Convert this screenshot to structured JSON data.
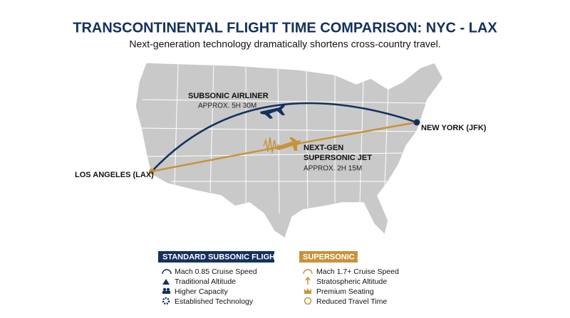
{
  "header": {
    "title": "TRANSCONTINENTAL FLIGHT TIME COMPARISON: NYC - LAX",
    "subtitle": "Next-generation technology dramatically shortens cross-country travel."
  },
  "routes": [
    {
      "name_lines": [
        "SUBSONIC AIRLINER"
      ],
      "time": "APPROX. 5H 30M"
    },
    {
      "name_lines": [
        "NEXT-GEN",
        "SUPERSONIC JET"
      ],
      "time": "APPROX. 2H 15M"
    }
  ],
  "cities": {
    "origin": "LOS ANGELES (LAX)",
    "destination": "NEW YORK (JFK)"
  },
  "legend": [
    {
      "title": "STANDARD SUBSONIC FLIGHT",
      "items": [
        "Mach 0.85 Cruise Speed",
        "Traditional Altitude",
        "Higher Capacity",
        "Established Technology"
      ]
    },
    {
      "title": "SUPERSONIC JET",
      "items": [
        "Mach 1.7+ Cruise Speed",
        "Stratospheric Altitude",
        "Premium Seating",
        "Reduced Travel Time"
      ]
    }
  ]
}
